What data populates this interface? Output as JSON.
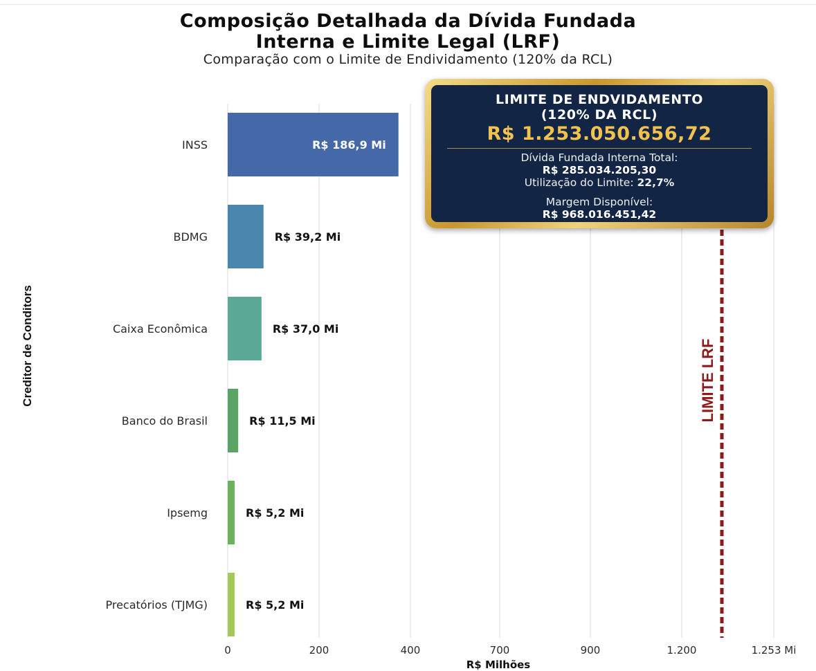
{
  "chart_data": {
    "type": "bar",
    "orientation": "horizontal",
    "title_line1": "Composição Detalhada da Dívida Fundada",
    "title_line2": "Interna e Limite Legal (LRF)",
    "subtitle": "Comparação com o Limite de Endividamento (120% da RCL)",
    "xlabel": "R$ Milhões",
    "ylabel": "Creditor de Conditors",
    "categories": [
      "INSS",
      "BDMG",
      "Caixa Econômica",
      "Banco do Brasil",
      "Ipsemg",
      "Precatórios (TJMG)"
    ],
    "values": [
      186.9,
      39.2,
      37.0,
      11.5,
      5.2,
      5.2
    ],
    "value_labels": [
      "R$ 186,9 Mi",
      "R$ 39,2 Mi",
      "R$ 37,0 Mi",
      "R$ 11,5 Mi",
      "R$ 5,2 Mi",
      "R$ 5,2 Mi"
    ],
    "bar_colors": [
      "#4468a8",
      "#4a86ad",
      "#5aa895",
      "#5ba366",
      "#6cb25e",
      "#a6c95c"
    ],
    "value_label_inside": [
      true,
      false,
      false,
      false,
      false,
      false
    ],
    "x_ticks": [
      0,
      200,
      400,
      700,
      900,
      1200,
      1253
    ],
    "x_tick_labels": [
      "0",
      "200",
      "400",
      "700",
      "900",
      "1.200",
      "1.253 Mi"
    ],
    "limit_line": {
      "value": 1253,
      "label": "LIMITE LRF",
      "color": "#8b1a1a",
      "style": "dashed"
    },
    "grid": true
  },
  "info_box": {
    "heading_line1": "LIMITE DE ENDVIDAMENTO",
    "heading_line2": "(120% DA RCL)",
    "limit_value": "R$ 1.253.050.656,72",
    "debt_label": "Dívida Fundada Interna Total:",
    "debt_value": "R$ 285.034.205,30",
    "usage_label": "Utilização do Limite:",
    "usage_value": "22,7%",
    "margin_label": "Margem Disponível:",
    "margin_value": "R$ 968.016.451,42"
  },
  "colors": {
    "box_bg": "#132544",
    "box_border": "#c9972e",
    "box_value": "#f2c14e"
  }
}
